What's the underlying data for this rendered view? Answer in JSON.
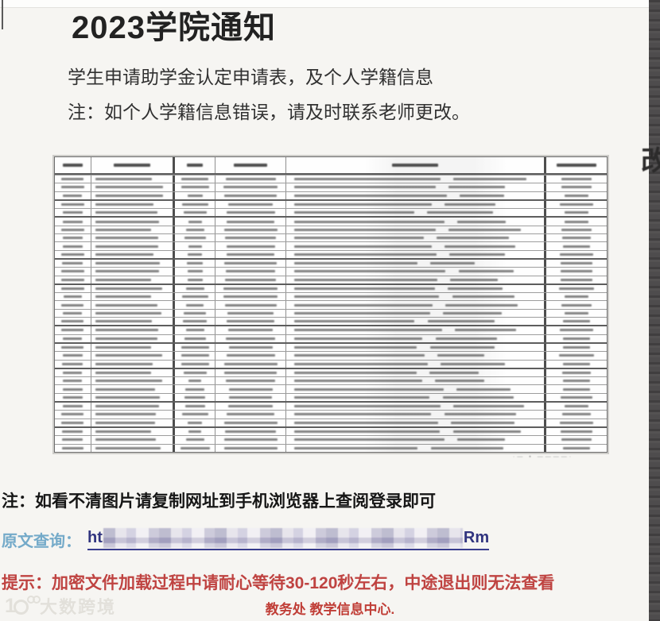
{
  "notice": {
    "title": "2023学院通知",
    "line1": "学生申请助学金认定申请表，及个人学籍信息",
    "line2": "注：如个人学籍信息错误，请及时联系老师更改。"
  },
  "table": {
    "summary": "blurred student roster scan, text illegible",
    "columns": 6,
    "data_rows": 33,
    "col_width_pct": [
      6.5,
      15.0,
      7.3,
      12.8,
      47.3,
      11.1
    ],
    "thick_row_tops": [
      3,
      5,
      10,
      13,
      18,
      20,
      23,
      27,
      30
    ],
    "caption_marks": "·—  ▪  ————·"
  },
  "footer": {
    "note": "注：如看不清图片请复制网址到手机浏览器上查阅登录即可",
    "query_label": "原文查询：",
    "link_prefix": "ht",
    "link_suffix": "Rm",
    "tip": "提示：加密文件加载过程中请耐心等待30-120秒左右，中途退出则无法查看",
    "dept": "教务处 教学信息中心."
  },
  "decor": {
    "edge_glyph": "改"
  },
  "watermark": {
    "text": "大数跨境"
  },
  "colors": {
    "page_bg": "#f6f5f2",
    "warning_red": "#bf4341",
    "link_blue": "#31347f",
    "query_teal": "#74aac9",
    "right_strip": "#4e4c4d"
  }
}
